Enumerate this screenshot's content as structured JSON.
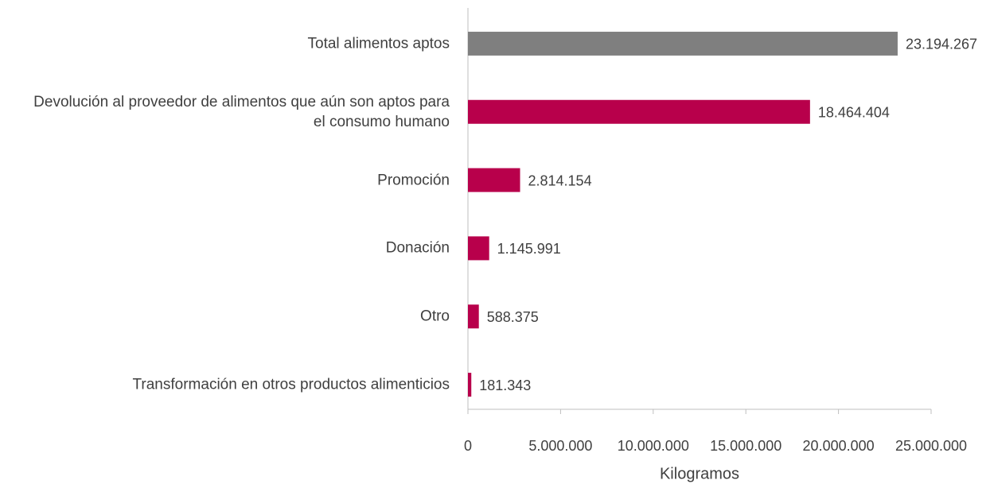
{
  "chart_data": {
    "type": "bar",
    "orientation": "horizontal",
    "categories": [
      "Total alimentos aptos",
      "Devolución al proveedor de alimentos que aún son aptos para el consumo humano",
      "Promoción",
      "Donación",
      "Otro",
      "Transformación en otros productos alimenticios"
    ],
    "values": [
      23194267,
      18464404,
      2814154,
      1145991,
      588375,
      181343
    ],
    "value_labels": [
      "23.194.267",
      "18.464.404",
      "2.814.154",
      "1.145.991",
      "588.375",
      "181.343"
    ],
    "colors": [
      "#7f7f7f",
      "#b8004b",
      "#b8004b",
      "#b8004b",
      "#b8004b",
      "#b8004b"
    ],
    "xlabel": "Kilogramos",
    "xlim": [
      0,
      25000000
    ],
    "xticks": [
      0,
      {
        "value": 5000000,
        "label": "5.000.000"
      },
      {
        "value": 10000000,
        "label": "10.000.000"
      },
      {
        "value": 15000000,
        "label": "15.000.000"
      },
      {
        "value": 20000000,
        "label": "20.000.000"
      },
      {
        "value": 25000000,
        "label": "25.000.000"
      }
    ]
  }
}
